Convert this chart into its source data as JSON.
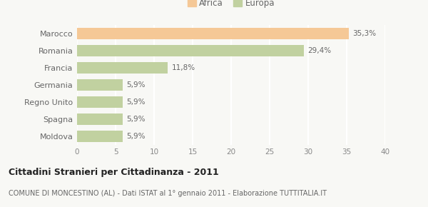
{
  "categories": [
    "Marocco",
    "Romania",
    "Francia",
    "Germania",
    "Regno Unito",
    "Spagna",
    "Moldova"
  ],
  "values": [
    35.3,
    29.4,
    11.8,
    5.9,
    5.9,
    5.9,
    5.9
  ],
  "labels": [
    "35,3%",
    "29,4%",
    "11,8%",
    "5,9%",
    "5,9%",
    "5,9%",
    "5,9%"
  ],
  "colors": [
    "#f5c896",
    "#c1d1a0",
    "#c1d1a0",
    "#c1d1a0",
    "#c1d1a0",
    "#c1d1a0",
    "#c1d1a0"
  ],
  "legend_africa_color": "#f5c896",
  "legend_europa_color": "#c1d1a0",
  "xlim": [
    0,
    40
  ],
  "xticks": [
    0,
    5,
    10,
    15,
    20,
    25,
    30,
    35,
    40
  ],
  "title": "Cittadini Stranieri per Cittadinanza - 2011",
  "subtitle": "COMUNE DI MONCESTINO (AL) - Dati ISTAT al 1° gennaio 2011 - Elaborazione TUTTITALIA.IT",
  "background_color": "#f8f8f5",
  "grid_color": "#ffffff",
  "bar_height": 0.65
}
